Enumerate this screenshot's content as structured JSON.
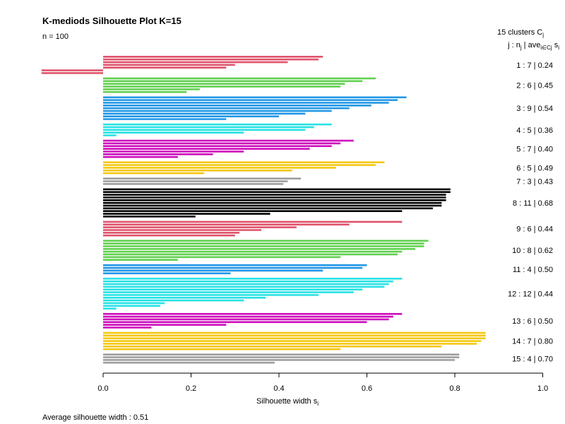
{
  "title": "K-mediods Silhouette Plot K=15",
  "subtitle": "n = 100",
  "footer": "Average silhouette width :  0.51",
  "xlabel": "Silhouette width s",
  "xlabel_sub": "i",
  "right_header": {
    "line1": "15  clusters  C",
    "line1_sub": "j",
    "line2_a": "j :  n",
    "line2_a_sub": "j",
    "line2_b": " | ave",
    "line2_b_sub": "i∈Cj",
    "line2_c": "  s",
    "line2_c_sub": "i"
  },
  "chart_data": {
    "type": "bar",
    "orientation": "horizontal",
    "title": "K-mediods Silhouette Plot K=15",
    "xlabel": "Silhouette width si",
    "ylabel": "",
    "xlim": [
      0,
      1
    ],
    "xticks": [
      0.0,
      0.2,
      0.4,
      0.6,
      0.8,
      1.0
    ],
    "xtick_labels": [
      "0.0",
      "0.2",
      "0.4",
      "0.6",
      "0.8",
      "1.0"
    ],
    "grid": false,
    "legend": "right-side cluster summary",
    "average_silhouette_width": 0.51,
    "n": 100,
    "clusters": [
      {
        "id": 1,
        "n": 7,
        "ave": "0.24",
        "color": "#DF536B",
        "values": [
          0.5,
          0.49,
          0.42,
          0.3,
          0.28,
          -0.14,
          -0.14
        ]
      },
      {
        "id": 2,
        "n": 6,
        "ave": "0.45",
        "color": "#61D04F",
        "values": [
          0.62,
          0.59,
          0.55,
          0.54,
          0.22,
          0.19
        ]
      },
      {
        "id": 3,
        "n": 9,
        "ave": "0.54",
        "color": "#2297E6",
        "values": [
          0.69,
          0.67,
          0.65,
          0.61,
          0.56,
          0.52,
          0.46,
          0.4,
          0.28
        ]
      },
      {
        "id": 4,
        "n": 5,
        "ave": "0.36",
        "color": "#28E2E5",
        "values": [
          0.52,
          0.48,
          0.46,
          0.32,
          0.03
        ]
      },
      {
        "id": 5,
        "n": 7,
        "ave": "0.40",
        "color": "#CD0BBC",
        "values": [
          0.57,
          0.54,
          0.52,
          0.47,
          0.32,
          0.25,
          0.17
        ]
      },
      {
        "id": 6,
        "n": 5,
        "ave": "0.49",
        "color": "#F5C710",
        "values": [
          0.64,
          0.62,
          0.53,
          0.43,
          0.23
        ]
      },
      {
        "id": 7,
        "n": 3,
        "ave": "0.43",
        "color": "#9E9E9E",
        "values": [
          0.45,
          0.42,
          0.41
        ]
      },
      {
        "id": 8,
        "n": 11,
        "ave": "0.68",
        "color": "#000000",
        "values": [
          0.79,
          0.79,
          0.78,
          0.78,
          0.78,
          0.77,
          0.77,
          0.75,
          0.68,
          0.38,
          0.21
        ]
      },
      {
        "id": 9,
        "n": 6,
        "ave": "0.44",
        "color": "#DF536B",
        "values": [
          0.68,
          0.56,
          0.44,
          0.36,
          0.31,
          0.3
        ]
      },
      {
        "id": 10,
        "n": 8,
        "ave": "0.62",
        "color": "#61D04F",
        "values": [
          0.74,
          0.73,
          0.73,
          0.71,
          0.68,
          0.67,
          0.54,
          0.17
        ]
      },
      {
        "id": 11,
        "n": 4,
        "ave": "0.50",
        "color": "#2297E6",
        "values": [
          0.6,
          0.59,
          0.5,
          0.29
        ]
      },
      {
        "id": 12,
        "n": 12,
        "ave": "0.44",
        "color": "#28E2E5",
        "values": [
          0.68,
          0.66,
          0.65,
          0.64,
          0.59,
          0.57,
          0.49,
          0.37,
          0.32,
          0.14,
          0.13,
          0.03
        ]
      },
      {
        "id": 13,
        "n": 6,
        "ave": "0.50",
        "color": "#CD0BBC",
        "values": [
          0.68,
          0.66,
          0.65,
          0.6,
          0.28,
          0.11
        ]
      },
      {
        "id": 14,
        "n": 7,
        "ave": "0.80",
        "color": "#F5C710",
        "values": [
          0.87,
          0.87,
          0.87,
          0.86,
          0.85,
          0.77,
          0.54
        ]
      },
      {
        "id": 15,
        "n": 4,
        "ave": "0.70",
        "color": "#9E9E9E",
        "values": [
          0.81,
          0.81,
          0.8,
          0.39
        ]
      }
    ]
  }
}
